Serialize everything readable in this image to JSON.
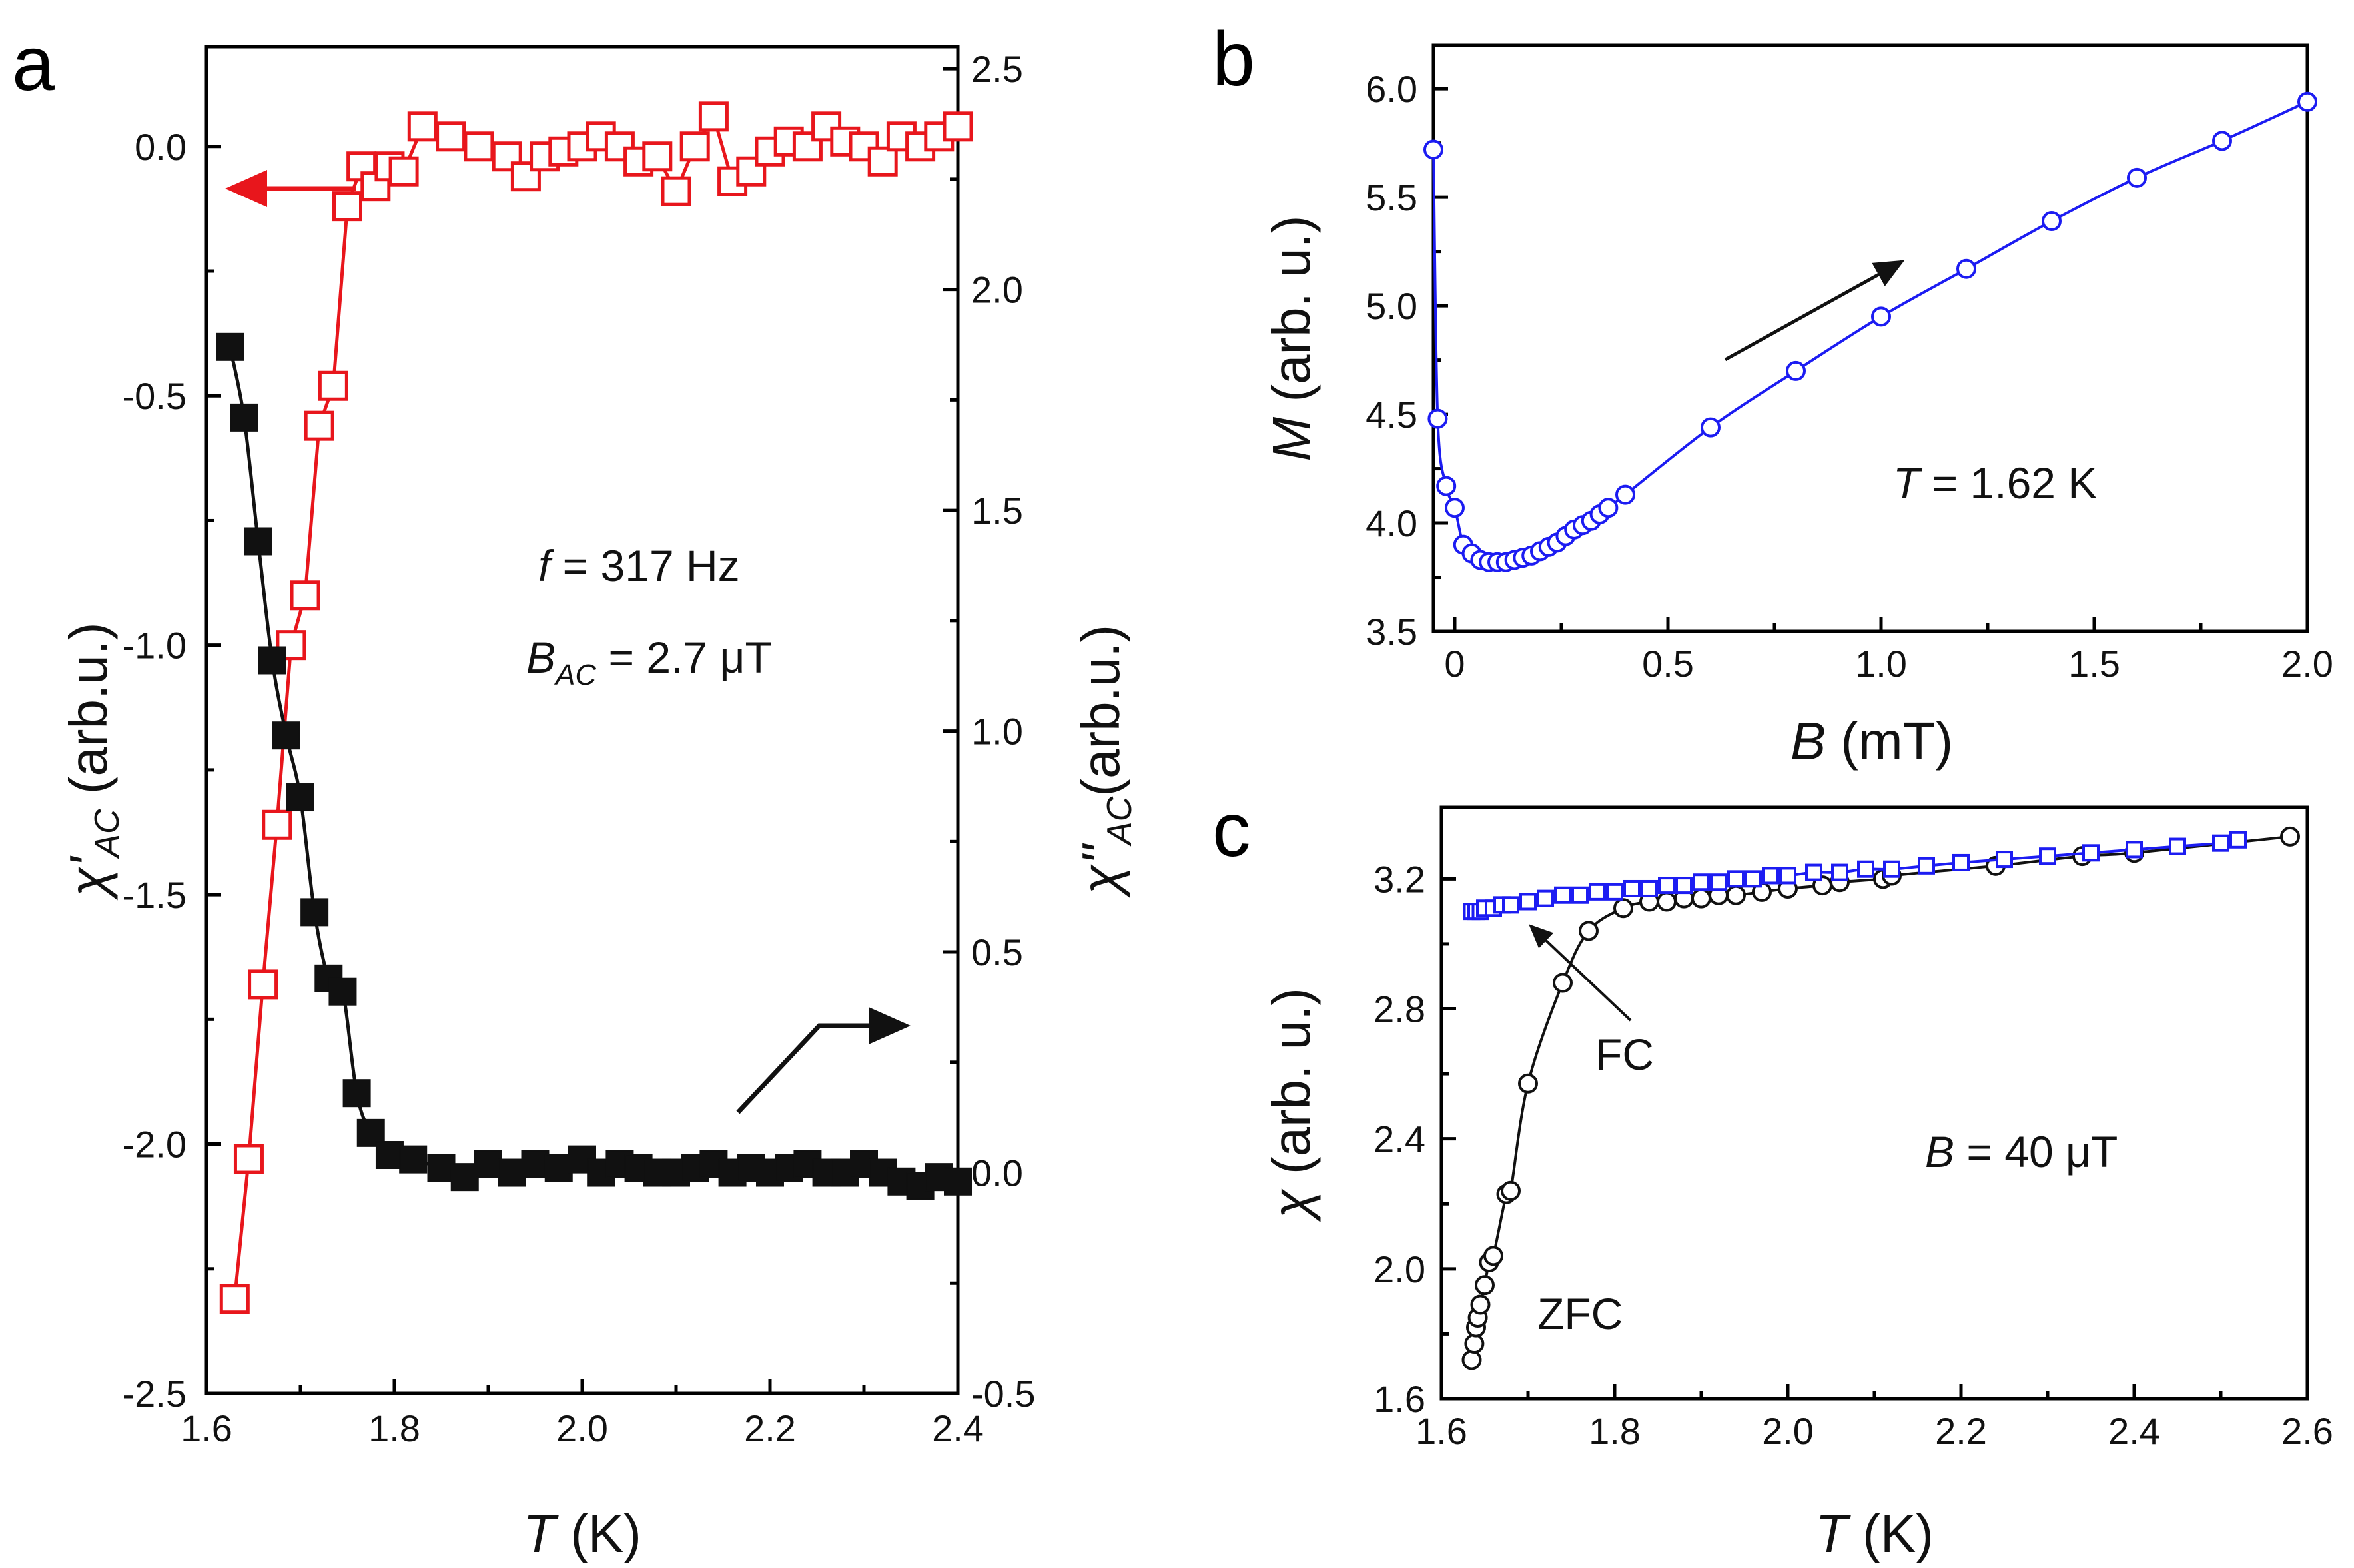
{
  "figure": {
    "colors": {
      "chi_real": "#e8161c",
      "chi_imag": "#111111",
      "magnetization": "#1c1cf2",
      "fc": "#1c1cf2",
      "zfc": "#111111",
      "axis": "#000000"
    }
  },
  "chart_data": [
    {
      "panel": "a",
      "type": "scatter",
      "title": "",
      "xlabel": "T (K)",
      "xlabel_parts": {
        "symbol": "T",
        "unit": " (K)"
      },
      "ylabel_left": "χ'AC (arb.u.)",
      "ylabel_left_parts": {
        "symbol": "χ'",
        "sub": "AC",
        "unit": " (arb.u.)"
      },
      "ylabel_right": "χ''AC(arb.u.)",
      "ylabel_right_parts": {
        "symbol": "χ''",
        "sub": "AC",
        "unit": "(arb.u.)"
      },
      "xlim": [
        1.6,
        2.4
      ],
      "ylim_left": [
        -2.5,
        0.2
      ],
      "ylim_right": [
        -0.5,
        2.55
      ],
      "xticks": [
        "1.6",
        "1.8",
        "2.0",
        "2.2",
        "2.4"
      ],
      "yticks_left": [
        "0.0",
        "-0.5",
        "-1.0",
        "-1.5",
        "-2.0",
        "-2.5"
      ],
      "yticks_right": [
        "2.5",
        "2.0",
        "1.5",
        "1.0",
        "0.5",
        "0.0",
        "-0.5"
      ],
      "annotations": {
        "freq": {
          "symbol": "f",
          "rest": " = 317 Hz"
        },
        "field": {
          "symbol": "B",
          "sub": "AC",
          "rest": " = 2.7 μT"
        }
      },
      "series": [
        {
          "name": "χ'AC",
          "axis": "left",
          "marker": "open-square",
          "color": "#e8161c",
          "x": [
            1.63,
            1.645,
            1.66,
            1.675,
            1.69,
            1.705,
            1.72,
            1.735,
            1.75,
            1.765,
            1.78,
            1.795,
            1.81,
            1.83,
            1.86,
            1.89,
            1.92,
            1.94,
            1.96,
            1.98,
            2.0,
            2.02,
            2.04,
            2.06,
            2.08,
            2.1,
            2.12,
            2.14,
            2.16,
            2.18,
            2.2,
            2.22,
            2.24,
            2.26,
            2.28,
            2.3,
            2.32,
            2.34,
            2.36,
            2.38,
            2.4
          ],
          "y": [
            -2.31,
            -2.03,
            -1.68,
            -1.36,
            -1.0,
            -0.9,
            -0.56,
            -0.48,
            -0.12,
            -0.04,
            -0.08,
            -0.04,
            -0.05,
            0.04,
            0.02,
            0.0,
            -0.02,
            -0.06,
            -0.02,
            -0.01,
            0.0,
            0.02,
            0.0,
            -0.03,
            -0.02,
            -0.09,
            0.0,
            0.06,
            -0.07,
            -0.05,
            -0.01,
            0.01,
            0.0,
            0.04,
            0.01,
            0.0,
            -0.03,
            0.02,
            0.0,
            0.02,
            0.04
          ]
        },
        {
          "name": "χ''AC",
          "axis": "right",
          "marker": "filled-square",
          "color": "#111111",
          "x": [
            1.625,
            1.64,
            1.655,
            1.67,
            1.685,
            1.7,
            1.715,
            1.73,
            1.745,
            1.76,
            1.775,
            1.795,
            1.82,
            1.85,
            1.875,
            1.9,
            1.925,
            1.95,
            1.975,
            2.0,
            2.02,
            2.04,
            2.06,
            2.08,
            2.1,
            2.12,
            2.14,
            2.16,
            2.18,
            2.2,
            2.22,
            2.24,
            2.26,
            2.28,
            2.3,
            2.32,
            2.34,
            2.36,
            2.38,
            2.4
          ],
          "y": [
            1.87,
            1.71,
            1.43,
            1.16,
            0.99,
            0.85,
            0.59,
            0.44,
            0.41,
            0.18,
            0.09,
            0.04,
            0.03,
            0.01,
            -0.01,
            0.02,
            0.0,
            0.02,
            0.01,
            0.03,
            0.0,
            0.02,
            0.01,
            0.0,
            0.0,
            0.01,
            0.02,
            0.0,
            0.01,
            0.0,
            0.01,
            0.02,
            0.0,
            0.0,
            0.02,
            0.0,
            -0.02,
            -0.03,
            -0.01,
            -0.02
          ]
        }
      ]
    },
    {
      "panel": "b",
      "type": "line",
      "title": "",
      "xlabel": "B (mT)",
      "xlabel_parts": {
        "symbol": "B",
        "unit": " (mT)"
      },
      "ylabel": "M (arb. u.)",
      "ylabel_parts": {
        "symbol": "M",
        "unit": " (arb. u.)"
      },
      "xlim": [
        -0.05,
        2.0
      ],
      "ylim": [
        3.5,
        6.2
      ],
      "xticks": [
        "0",
        "0.5",
        "1.0",
        "1.5",
        "2.0"
      ],
      "yticks": [
        "6.0",
        "5.5",
        "5.0",
        "4.5",
        "4.0",
        "3.5"
      ],
      "annotation": {
        "symbol": "T",
        "rest": " = 1.62 K"
      },
      "series": [
        {
          "name": "M(B)",
          "marker": "open-circle",
          "color": "#1c1cf2",
          "x": [
            -0.05,
            -0.04,
            -0.02,
            0.0,
            0.02,
            0.04,
            0.06,
            0.08,
            0.1,
            0.12,
            0.14,
            0.16,
            0.18,
            0.2,
            0.22,
            0.24,
            0.26,
            0.28,
            0.3,
            0.32,
            0.34,
            0.36,
            0.4,
            0.6,
            0.8,
            1.0,
            1.2,
            1.4,
            1.6,
            1.8,
            2.0
          ],
          "y": [
            5.72,
            4.48,
            4.17,
            4.07,
            3.9,
            3.86,
            3.83,
            3.82,
            3.82,
            3.82,
            3.83,
            3.84,
            3.85,
            3.87,
            3.89,
            3.91,
            3.94,
            3.97,
            3.99,
            4.01,
            4.04,
            4.07,
            4.13,
            4.44,
            4.7,
            4.95,
            5.17,
            5.39,
            5.59,
            5.76,
            5.94
          ]
        }
      ]
    },
    {
      "panel": "c",
      "type": "line",
      "title": "",
      "xlabel": "T (K)",
      "xlabel_parts": {
        "symbol": "T",
        "unit": " (K)"
      },
      "ylabel": "χ (arb. u.)",
      "ylabel_parts": {
        "symbol": "χ",
        "unit": " (arb. u.)"
      },
      "xlim": [
        1.6,
        2.6
      ],
      "ylim": [
        1.6,
        3.42
      ],
      "xticks": [
        "1.6",
        "1.8",
        "2.0",
        "2.2",
        "2.4",
        "2.6"
      ],
      "yticks": [
        "3.2",
        "2.8",
        "2.4",
        "2.0",
        "1.6"
      ],
      "annotation": {
        "symbol": "B",
        "rest": " = 40 μT"
      },
      "curve_labels": {
        "fc": "FC",
        "zfc": "ZFC"
      },
      "series": [
        {
          "name": "FC",
          "marker": "open-square",
          "color": "#1c1cf2",
          "x": [
            1.635,
            1.64,
            1.645,
            1.65,
            1.66,
            1.67,
            1.68,
            1.7,
            1.72,
            1.74,
            1.76,
            1.78,
            1.8,
            1.82,
            1.84,
            1.86,
            1.88,
            1.9,
            1.92,
            1.94,
            1.96,
            1.98,
            2.0,
            2.03,
            2.06,
            2.09,
            2.12,
            2.16,
            2.2,
            2.25,
            2.3,
            2.35,
            2.4,
            2.45,
            2.5,
            2.52
          ],
          "y": [
            3.1,
            3.1,
            3.1,
            3.11,
            3.11,
            3.12,
            3.12,
            3.13,
            3.14,
            3.15,
            3.15,
            3.16,
            3.16,
            3.17,
            3.17,
            3.18,
            3.18,
            3.19,
            3.19,
            3.2,
            3.2,
            3.21,
            3.21,
            3.22,
            3.22,
            3.23,
            3.23,
            3.24,
            3.25,
            3.26,
            3.27,
            3.28,
            3.29,
            3.3,
            3.31,
            3.32
          ]
        },
        {
          "name": "ZFC",
          "marker": "open-circle",
          "color": "#111111",
          "x": [
            1.635,
            1.638,
            1.64,
            1.642,
            1.645,
            1.65,
            1.655,
            1.66,
            1.675,
            1.68,
            1.7,
            1.74,
            1.77,
            1.81,
            1.84,
            1.86,
            1.88,
            1.9,
            1.92,
            1.94,
            1.97,
            2.0,
            2.04,
            2.06,
            2.11,
            2.12,
            2.24,
            2.34,
            2.4,
            2.58
          ],
          "y": [
            1.72,
            1.77,
            1.82,
            1.85,
            1.89,
            1.95,
            2.02,
            2.04,
            2.23,
            2.24,
            2.57,
            2.88,
            3.04,
            3.11,
            3.13,
            3.13,
            3.14,
            3.14,
            3.15,
            3.15,
            3.16,
            3.17,
            3.18,
            3.19,
            3.2,
            3.21,
            3.24,
            3.27,
            3.28,
            3.33
          ]
        }
      ]
    }
  ],
  "panel_letters": {
    "a": "a",
    "b": "b",
    "c": "c"
  }
}
